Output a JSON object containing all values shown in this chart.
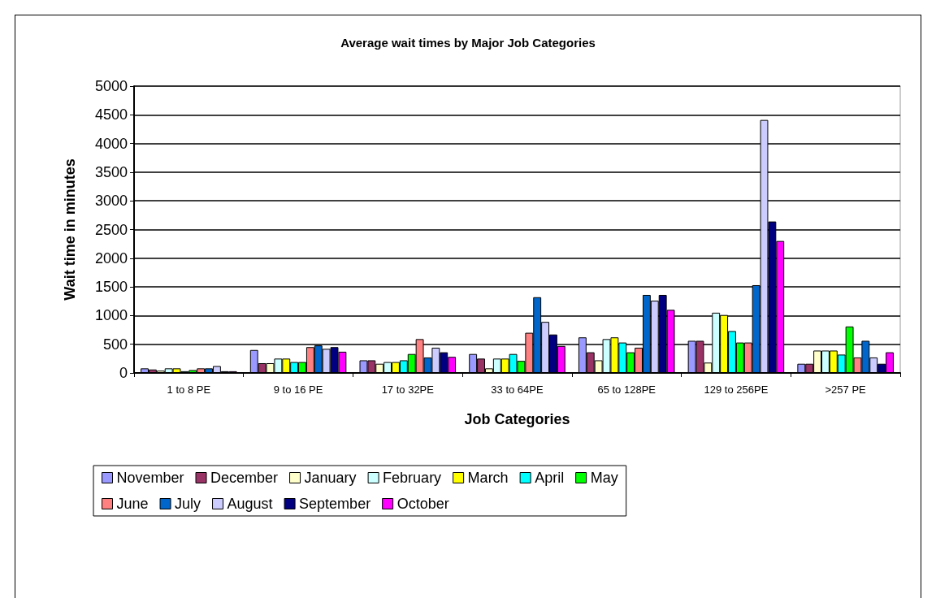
{
  "chart_data": {
    "type": "bar",
    "title": "Average wait times by Major Job Categories",
    "xlabel": "Job Categories",
    "ylabel": "Wait time in minutes",
    "categories": [
      "1 to 8 PE",
      "9 to 16 PE",
      "17 to 32PE",
      "33 to 64PE",
      "65 to 128PE",
      "129 to 256PE",
      ">257 PE"
    ],
    "series": [
      {
        "name": "November",
        "color": "#9999ff",
        "values": [
          80,
          400,
          220,
          330,
          620,
          560,
          160
        ]
      },
      {
        "name": "December",
        "color": "#993366",
        "values": [
          60,
          170,
          220,
          250,
          360,
          560,
          160
        ]
      },
      {
        "name": "January",
        "color": "#ffffcc",
        "values": [
          40,
          170,
          160,
          80,
          220,
          180,
          390
        ]
      },
      {
        "name": "February",
        "color": "#ccffff",
        "values": [
          80,
          250,
          190,
          250,
          590,
          1050,
          390
        ]
      },
      {
        "name": "March",
        "color": "#ffff00",
        "values": [
          80,
          250,
          190,
          250,
          620,
          1010,
          390
        ]
      },
      {
        "name": "April",
        "color": "#00ffff",
        "values": [
          30,
          190,
          220,
          330,
          530,
          730,
          320
        ]
      },
      {
        "name": "May",
        "color": "#00ff00",
        "values": [
          50,
          190,
          330,
          210,
          360,
          530,
          810
        ]
      },
      {
        "name": "June",
        "color": "#ff8080",
        "values": [
          80,
          450,
          590,
          700,
          440,
          530,
          270
        ]
      },
      {
        "name": "July",
        "color": "#0066cc",
        "values": [
          80,
          480,
          270,
          1320,
          1360,
          1530,
          560
        ]
      },
      {
        "name": "August",
        "color": "#ccccff",
        "values": [
          120,
          420,
          440,
          890,
          1260,
          4410,
          270
        ]
      },
      {
        "name": "September",
        "color": "#000080",
        "values": [
          30,
          450,
          360,
          670,
          1360,
          2640,
          160
        ]
      },
      {
        "name": "October",
        "color": "#ff00ff",
        "values": [
          30,
          370,
          280,
          470,
          1100,
          2300,
          360
        ]
      }
    ],
    "ylim": [
      0,
      5000
    ],
    "yticks": [
      0,
      500,
      1000,
      1500,
      2000,
      2500,
      3000,
      3500,
      4000,
      4500,
      5000
    ],
    "grid": "y",
    "legend": "bottom"
  }
}
